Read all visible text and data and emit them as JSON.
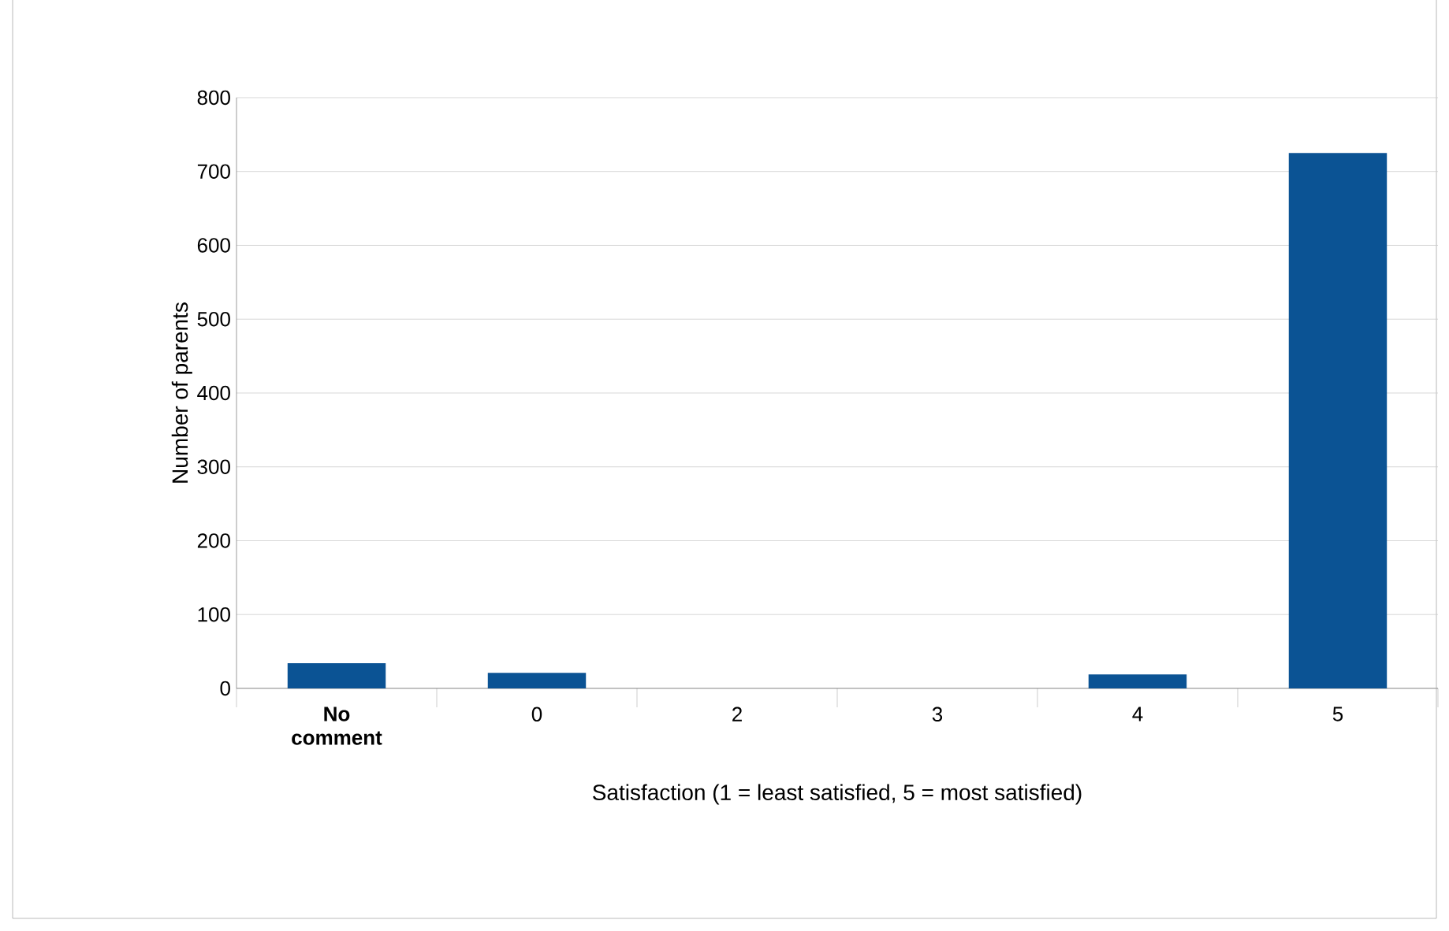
{
  "chart_data": {
    "type": "bar",
    "xlabel": "Satisfaction (1 = least satisfied, 5 = most satisfied)",
    "ylabel": "Number of parents",
    "categories": [
      "No comment",
      "0",
      "2",
      "3",
      "4",
      "5"
    ],
    "values": [
      34,
      21,
      0,
      0,
      19,
      725
    ],
    "color": "#0b5394",
    "ylim": [
      0,
      800
    ],
    "yticks": [
      0,
      100,
      200,
      300,
      400,
      500,
      600,
      700,
      800
    ],
    "grid": "y"
  }
}
